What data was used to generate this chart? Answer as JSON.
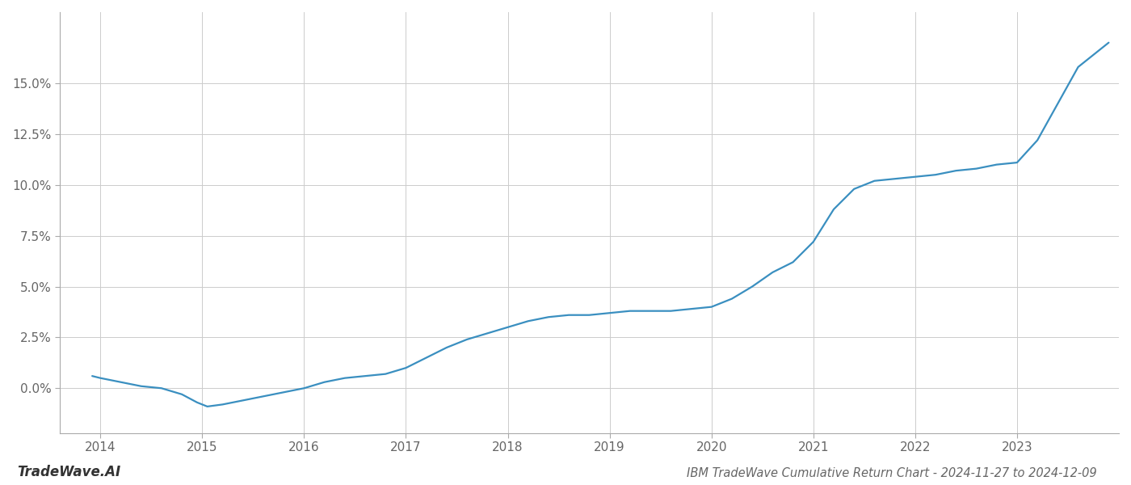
{
  "title": "IBM TradeWave Cumulative Return Chart - 2024-11-27 to 2024-12-09",
  "watermark": "TradeWave.AI",
  "line_color": "#3a8fc0",
  "background_color": "#ffffff",
  "grid_color": "#cccccc",
  "x_values": [
    2013.92,
    2014.0,
    2014.2,
    2014.4,
    2014.6,
    2014.8,
    2014.95,
    2015.05,
    2015.2,
    2015.4,
    2015.6,
    2015.8,
    2016.0,
    2016.2,
    2016.4,
    2016.6,
    2016.8,
    2017.0,
    2017.2,
    2017.4,
    2017.6,
    2017.8,
    2018.0,
    2018.2,
    2018.4,
    2018.6,
    2018.8,
    2019.0,
    2019.2,
    2019.4,
    2019.6,
    2019.8,
    2020.0,
    2020.2,
    2020.4,
    2020.6,
    2020.8,
    2021.0,
    2021.2,
    2021.4,
    2021.6,
    2021.8,
    2022.0,
    2022.2,
    2022.4,
    2022.6,
    2022.8,
    2023.0,
    2023.2,
    2023.4,
    2023.6,
    2023.9
  ],
  "y_values": [
    0.006,
    0.005,
    0.003,
    0.001,
    0.0,
    -0.003,
    -0.007,
    -0.009,
    -0.008,
    -0.006,
    -0.004,
    -0.002,
    0.0,
    0.003,
    0.005,
    0.006,
    0.007,
    0.01,
    0.015,
    0.02,
    0.024,
    0.027,
    0.03,
    0.033,
    0.035,
    0.036,
    0.036,
    0.037,
    0.038,
    0.038,
    0.038,
    0.039,
    0.04,
    0.044,
    0.05,
    0.057,
    0.062,
    0.072,
    0.088,
    0.098,
    0.102,
    0.103,
    0.104,
    0.105,
    0.107,
    0.108,
    0.11,
    0.111,
    0.122,
    0.14,
    0.158,
    0.17
  ],
  "xlim": [
    2013.6,
    2024.0
  ],
  "ylim": [
    -0.022,
    0.185
  ],
  "yticks": [
    0.0,
    0.025,
    0.05,
    0.075,
    0.1,
    0.125,
    0.15
  ],
  "xticks": [
    2014,
    2015,
    2016,
    2017,
    2018,
    2019,
    2020,
    2021,
    2022,
    2023
  ],
  "line_width": 1.6,
  "title_fontsize": 10.5,
  "tick_fontsize": 11,
  "watermark_fontsize": 12
}
